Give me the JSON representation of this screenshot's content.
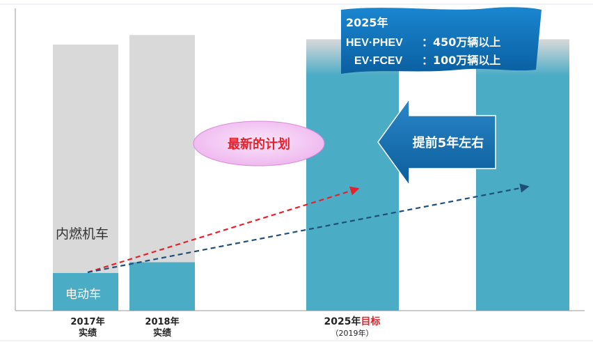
{
  "chart_data": {
    "type": "bar",
    "categories": [
      {
        "line1": "2017年",
        "line2": "实绩"
      },
      {
        "line1": "2018年",
        "line2": "实绩"
      },
      {
        "line1": "2025年",
        "line1_highlight": "目标",
        "line2": "（2019年）"
      },
      {
        "line1": "",
        "line2": ""
      }
    ],
    "series": [
      {
        "name": "电动车",
        "values": [
          14,
          18,
          88,
          88
        ],
        "color": "#4bacc6"
      },
      {
        "name": "内燃机车",
        "values": [
          86,
          84,
          12,
          12
        ],
        "color": "#d9d9d9"
      }
    ],
    "ylim": [
      0,
      100
    ],
    "grid": false
  },
  "labels": {
    "ice": "内燃机车",
    "ev": "电动车",
    "plan": "最新的计划",
    "ahead": "提前5年左右"
  },
  "banner": {
    "year": "2025年",
    "row1_label": "HEV·PHEV",
    "row1_value": "：450万辆以上",
    "row2_label": "EV·FCEV",
    "row2_value": "：100万辆以上"
  },
  "colors": {
    "ev": "#4bacc6",
    "ice": "#d9d9d9",
    "red_arrow": "#e8202a",
    "blue_arrow": "#1f4e79",
    "banner": "#0a6fb7",
    "ahead_arrow": "#0d67a8",
    "highlight": "#e8202a"
  }
}
